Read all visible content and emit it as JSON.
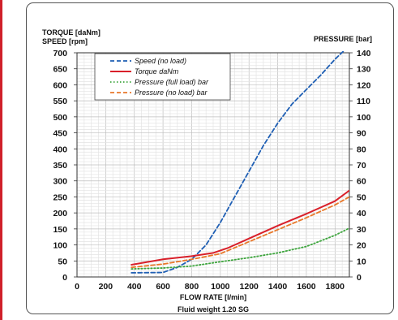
{
  "chart_data": {
    "type": "line",
    "y_left_label_1": "TORQUE [daNm]",
    "y_left_label_2": "SPEED   [rpm]",
    "y_right_label": "PRESSURE  [bar]",
    "xlabel": "FLOW RATE [l/min]",
    "note": "Fluid weight  1.20 SG",
    "xlim": [
      0,
      1900
    ],
    "ylim_left": [
      0,
      700
    ],
    "ylim_right": [
      0,
      140
    ],
    "x_ticks": [
      "0",
      "200",
      "400",
      "600",
      "800",
      "1000",
      "1200",
      "1400",
      "1600",
      "1800"
    ],
    "y_left_ticks": [
      "0",
      "50",
      "100",
      "150",
      "200",
      "250",
      "300",
      "350",
      "400",
      "450",
      "500",
      "550",
      "600",
      "650",
      "700"
    ],
    "y_right_ticks": [
      "0",
      "10",
      "20",
      "30",
      "40",
      "50",
      "60",
      "70",
      "80",
      "90",
      "100",
      "110",
      "120",
      "130",
      "140"
    ],
    "grid": true,
    "legend_position": "top-left",
    "series": [
      {
        "name": "Speed (no load)",
        "axis": "left",
        "color": "#1f5fb4",
        "style": "dashed",
        "x": [
          380,
          600,
          700,
          800,
          900,
          1000,
          1100,
          1200,
          1300,
          1400,
          1500,
          1600,
          1700,
          1800,
          1870
        ],
        "y": [
          13,
          14,
          30,
          55,
          100,
          170,
          250,
          330,
          410,
          480,
          540,
          585,
          630,
          680,
          710
        ]
      },
      {
        "name": "Torque daNm",
        "axis": "left",
        "color": "#d9202a",
        "style": "solid",
        "x": [
          380,
          600,
          800,
          950,
          1050,
          1200,
          1400,
          1600,
          1800,
          1900
        ],
        "y": [
          38,
          55,
          65,
          75,
          90,
          120,
          160,
          197,
          237,
          270
        ]
      },
      {
        "name": "Pressure (full load) bar",
        "axis": "right",
        "color": "#3ea53e",
        "style": "dotted",
        "x": [
          380,
          600,
          800,
          1000,
          1200,
          1400,
          1600,
          1800,
          1900
        ],
        "y": [
          5,
          5.6,
          6.8,
          9.5,
          12,
          15,
          19,
          26,
          30.5
        ]
      },
      {
        "name": "Pressure (no load) bar",
        "axis": "right",
        "color": "#e8782a",
        "style": "dashed",
        "x": [
          380,
          600,
          800,
          1000,
          1200,
          1400,
          1600,
          1800,
          1900
        ],
        "y": [
          6,
          8,
          11,
          14.5,
          22,
          29.5,
          37,
          45,
          50
        ]
      }
    ]
  }
}
